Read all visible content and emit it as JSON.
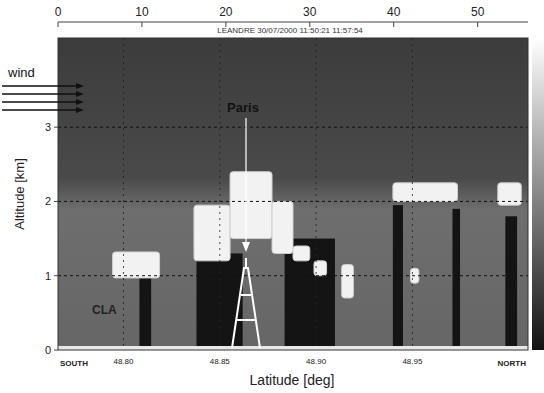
{
  "chart_data": {
    "type": "lidar_section",
    "title": "LEANDRE 30/07/2000 11:50:21 11:57:54",
    "y_label": "Altitude [km]",
    "x2_label": "Latitude [deg]",
    "south_label": "SOUTH",
    "north_label": "NORTH",
    "wind_label": "wind",
    "city_label": "Paris",
    "layer_label": "CLA",
    "xlim": [
      0,
      56
    ],
    "xticks": [
      0,
      10,
      20,
      30,
      40,
      50
    ],
    "x2lim": [
      48.766,
      49.01
    ],
    "x2ticks": [
      {
        "value": 48.8,
        "label": "48.80"
      },
      {
        "value": 48.85,
        "label": "48.85"
      },
      {
        "value": 48.9,
        "label": "48.90"
      },
      {
        "value": 48.95,
        "label": "48.95"
      }
    ],
    "ylim": [
      0,
      4.2
    ],
    "yticks": [
      0,
      1,
      2,
      3
    ],
    "grid": true,
    "clouds": [
      {
        "x": [
          6.5,
          12.1
        ],
        "y": [
          0.97,
          1.32
        ]
      },
      {
        "x": [
          16.2,
          20.5
        ],
        "y": [
          1.2,
          1.95
        ]
      },
      {
        "x": [
          20.5,
          25.5
        ],
        "y": [
          1.5,
          2.4
        ]
      },
      {
        "x": [
          25.5,
          28
        ],
        "y": [
          1.3,
          2.0
        ]
      },
      {
        "x": [
          28,
          30
        ],
        "y": [
          1.2,
          1.4
        ]
      },
      {
        "x": [
          30.5,
          32
        ],
        "y": [
          1.0,
          1.2
        ]
      },
      {
        "x": [
          33.8,
          35.2
        ],
        "y": [
          0.7,
          1.15
        ]
      },
      {
        "x": [
          39.9,
          47.6
        ],
        "y": [
          2.0,
          2.25
        ]
      },
      {
        "x": [
          42,
          43
        ],
        "y": [
          0.9,
          1.1
        ]
      },
      {
        "x": [
          52.4,
          55.2
        ],
        "y": [
          1.95,
          2.25
        ]
      }
    ],
    "shadows": [
      {
        "x": [
          9.7,
          11.1
        ],
        "y": [
          0,
          0.97
        ]
      },
      {
        "x": [
          16.5,
          22
        ],
        "y": [
          0,
          1.3
        ]
      },
      {
        "x": [
          27,
          33
        ],
        "y": [
          0,
          1.5
        ]
      },
      {
        "x": [
          39.9,
          41.1
        ],
        "y": [
          0,
          1.95
        ]
      },
      {
        "x": [
          47,
          47.9
        ],
        "y": [
          0,
          1.9
        ]
      },
      {
        "x": [
          53.3,
          54.7
        ],
        "y": [
          0,
          1.8
        ]
      }
    ]
  }
}
